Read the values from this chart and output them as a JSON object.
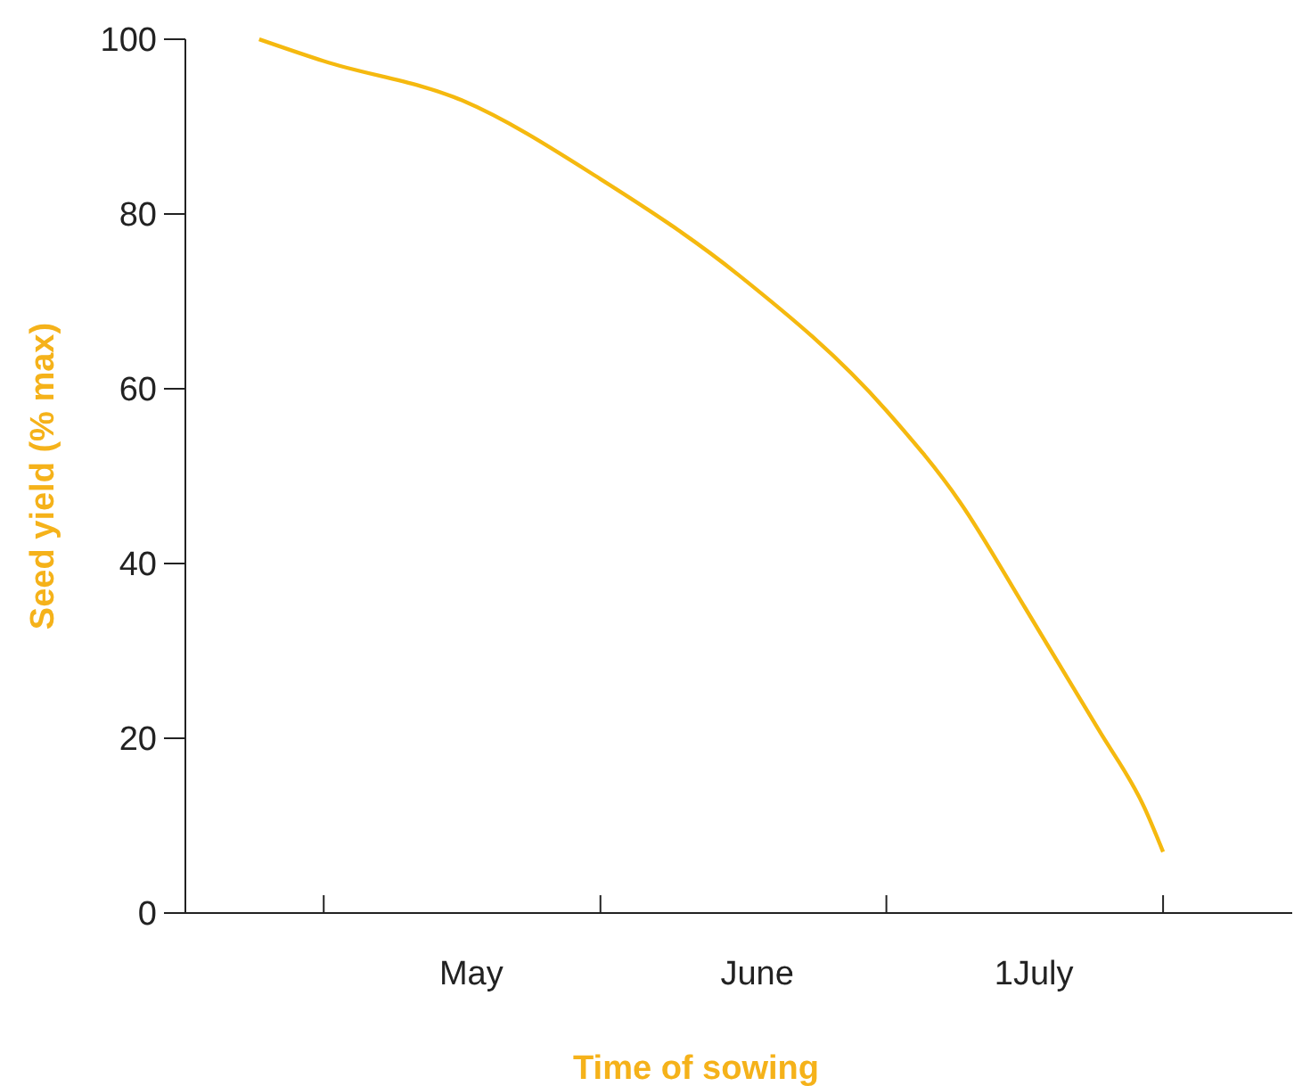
{
  "chart_data": {
    "type": "line",
    "xlabel": "Time of sowing",
    "ylabel": "Seed yield (% max)",
    "x": [
      "--04-08",
      "--04-15",
      "--04-30",
      "--05-15",
      "--05-30",
      "--06-15",
      "--06-23",
      "--06-30",
      "--07-08",
      "--07-13",
      "--07-15"
    ],
    "series": [
      {
        "color": "#f5b90f",
        "values": [
          100,
          97.5,
          93,
          84,
          73,
          57.5,
          47,
          35,
          21,
          12,
          7
        ]
      }
    ],
    "xlim": [
      "--03-31",
      "--07-29"
    ],
    "xticks": [
      {
        "value": "--04-15",
        "label": null
      },
      {
        "value": "--05-01",
        "label": "May"
      },
      {
        "value": "--05-15",
        "label": null
      },
      {
        "value": "--06-01",
        "label": "June"
      },
      {
        "value": "--06-15",
        "label": null
      },
      {
        "value": "--07-01",
        "label": "1July"
      },
      {
        "value": "--07-15",
        "label": null
      }
    ],
    "ylim": [
      0,
      100
    ],
    "yticks": [
      0,
      20,
      40,
      60,
      80,
      100
    ],
    "grid": false,
    "marker": "none",
    "line_style": "solid"
  }
}
